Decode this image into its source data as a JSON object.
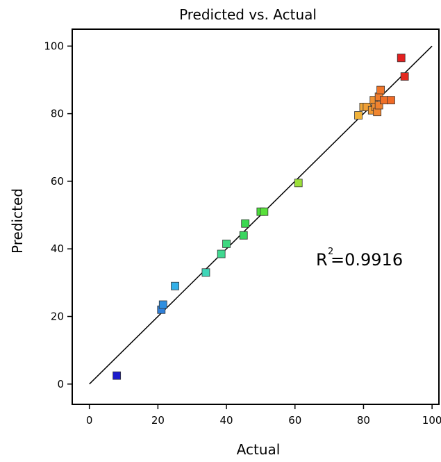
{
  "chart_data": {
    "type": "scatter",
    "title": "Predicted vs. Actual",
    "xlabel": "Actual",
    "ylabel": "Predicted",
    "xlim": [
      -5,
      102
    ],
    "ylim": [
      -6,
      105
    ],
    "xticks": [
      "0",
      "20",
      "40",
      "60",
      "80",
      "100"
    ],
    "yticks": [
      "0",
      "20",
      "40",
      "60",
      "80",
      "100"
    ],
    "grid": false,
    "legend": "none",
    "annotation": {
      "base": "R",
      "superscript": "2",
      "value": "=0.9916"
    },
    "reference_line": {
      "x": [
        0,
        100
      ],
      "y": [
        0,
        100
      ]
    },
    "colormap": {
      "low": "#0000ff",
      "high": "#ff0000"
    },
    "points": [
      {
        "x": 8,
        "y": 2.5,
        "color": "#1c1ccc"
      },
      {
        "x": 21,
        "y": 22,
        "color": "#2f7fd8"
      },
      {
        "x": 21.5,
        "y": 23.5,
        "color": "#2f8fe0"
      },
      {
        "x": 25,
        "y": 29,
        "color": "#33b0e8"
      },
      {
        "x": 34,
        "y": 33,
        "color": "#3fd6b8"
      },
      {
        "x": 38.5,
        "y": 38.5,
        "color": "#40d890"
      },
      {
        "x": 40,
        "y": 41.5,
        "color": "#3fd880"
      },
      {
        "x": 45,
        "y": 44,
        "color": "#3ad560"
      },
      {
        "x": 45.5,
        "y": 47.5,
        "color": "#3ad850"
      },
      {
        "x": 50,
        "y": 51,
        "color": "#4ade3a"
      },
      {
        "x": 51,
        "y": 51,
        "color": "#58e03a"
      },
      {
        "x": 61,
        "y": 59.5,
        "color": "#9ce03a"
      },
      {
        "x": 78.5,
        "y": 79.5,
        "color": "#f0b23a"
      },
      {
        "x": 80,
        "y": 82,
        "color": "#f0a838"
      },
      {
        "x": 81,
        "y": 82,
        "color": "#f0a036"
      },
      {
        "x": 82.5,
        "y": 81,
        "color": "#f09a34"
      },
      {
        "x": 83,
        "y": 84,
        "color": "#f09232"
      },
      {
        "x": 83.5,
        "y": 82,
        "color": "#f08c30"
      },
      {
        "x": 84,
        "y": 80.5,
        "color": "#f08630"
      },
      {
        "x": 84.5,
        "y": 82.5,
        "color": "#f0822e"
      },
      {
        "x": 84.5,
        "y": 85,
        "color": "#f07c2c"
      },
      {
        "x": 85,
        "y": 87,
        "color": "#f0762a"
      },
      {
        "x": 86,
        "y": 84,
        "color": "#f07028"
      },
      {
        "x": 88,
        "y": 84,
        "color": "#f06a26"
      },
      {
        "x": 91,
        "y": 96.5,
        "color": "#e42020"
      },
      {
        "x": 92,
        "y": 91,
        "color": "#e42a20"
      }
    ]
  }
}
